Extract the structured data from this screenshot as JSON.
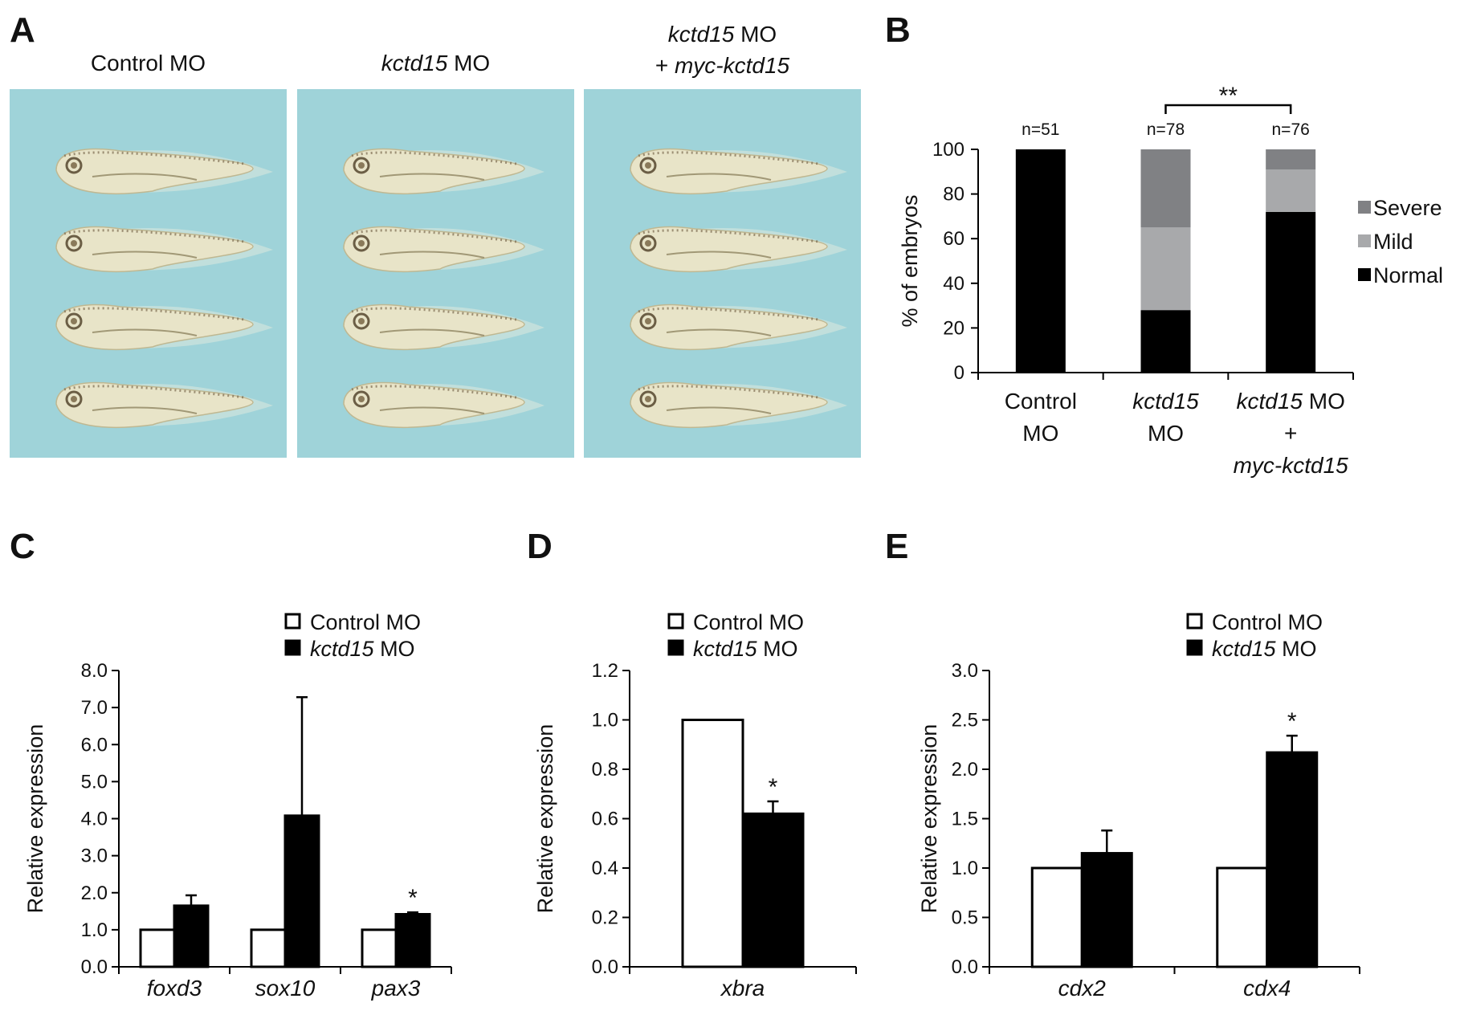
{
  "panel_a": {
    "letter": "A",
    "columns": [
      {
        "parts": [
          {
            "text": "Control MO",
            "italic": false
          }
        ]
      },
      {
        "parts": [
          {
            "text": "kctd15",
            "italic": true
          },
          {
            "text": " MO",
            "italic": false
          }
        ]
      },
      {
        "line1": [
          {
            "text": "kctd15",
            "italic": true
          },
          {
            "text": " MO",
            "italic": false
          }
        ],
        "line2": [
          {
            "text": "+ ",
            "italic": false
          },
          {
            "text": "myc-kctd15",
            "italic": true
          }
        ]
      }
    ],
    "embryos_per_column": 4,
    "colors": {
      "background": "#9fd3d9",
      "embryo": "#e8e4c8",
      "pigment": "#7a6a4e"
    }
  },
  "chart_data": [
    {
      "id": "B",
      "letter": "B",
      "type": "bar",
      "stacked": true,
      "ylabel": "% of embryos",
      "ylim": [
        0,
        100
      ],
      "yticks": [
        "0",
        "20",
        "40",
        "60",
        "80",
        "100"
      ],
      "categories": [
        {
          "lines": [
            [
              {
                "text": "Control",
                "italic": false
              }
            ],
            [
              {
                "text": "MO",
                "italic": false
              }
            ]
          ]
        },
        {
          "lines": [
            [
              {
                "text": "kctd15",
                "italic": true
              }
            ],
            [
              {
                "text": "MO",
                "italic": false
              }
            ]
          ]
        },
        {
          "lines": [
            [
              {
                "text": "kctd15",
                "italic": true
              },
              {
                "text": " MO",
                "italic": false
              }
            ],
            [
              {
                "text": "+",
                "italic": false
              }
            ],
            [
              {
                "text": "myc-kctd15",
                "italic": true
              }
            ]
          ]
        }
      ],
      "n_labels": [
        "n=51",
        "n=78",
        "n=76"
      ],
      "series": [
        {
          "name": "Normal",
          "color": "#000000",
          "values": [
            100,
            28,
            72
          ]
        },
        {
          "name": "Mild",
          "color": "#a8a9ab",
          "values": [
            0,
            37,
            19
          ]
        },
        {
          "name": "Severe",
          "color": "#808184",
          "values": [
            0,
            35,
            9
          ]
        }
      ],
      "legend": [
        "Severe",
        "Mild",
        "Normal"
      ],
      "significance": {
        "from": 1,
        "to": 2,
        "label": "**"
      }
    },
    {
      "id": "C",
      "letter": "C",
      "type": "bar",
      "ylabel": "Relative expression",
      "ylim": [
        0,
        8
      ],
      "yticks": [
        "0.0",
        "1.0",
        "2.0",
        "3.0",
        "4.0",
        "5.0",
        "6.0",
        "7.0",
        "8.0"
      ],
      "categories": [
        "foxd3",
        "sox10",
        "pax3"
      ],
      "series": [
        {
          "name": "Control MO",
          "fill": "#ffffff",
          "values": [
            1.0,
            1.0,
            1.0
          ],
          "errors": [
            0,
            0,
            0
          ]
        },
        {
          "name": "kctd15 MO",
          "fill": "#000000",
          "values": [
            1.65,
            4.08,
            1.42
          ],
          "errors": [
            0.28,
            3.2,
            0.05
          ]
        }
      ],
      "legend": [
        {
          "parts": [
            {
              "text": "Control MO",
              "italic": false
            }
          ]
        },
        {
          "parts": [
            {
              "text": "kctd15",
              "italic": true
            },
            {
              "text": " MO",
              "italic": false
            }
          ]
        }
      ],
      "stars": [
        {
          "category": 2,
          "label": "*"
        }
      ]
    },
    {
      "id": "D",
      "letter": "D",
      "type": "bar",
      "ylabel": "Relative expression",
      "ylim": [
        0,
        1.2
      ],
      "yticks": [
        "0.0",
        "0.2",
        "0.4",
        "0.6",
        "0.8",
        "1.0",
        "1.2"
      ],
      "categories": [
        "xbra"
      ],
      "series": [
        {
          "name": "Control MO",
          "fill": "#ffffff",
          "values": [
            1.0
          ],
          "errors": [
            0
          ]
        },
        {
          "name": "kctd15 MO",
          "fill": "#000000",
          "values": [
            0.62
          ],
          "errors": [
            0.05
          ]
        }
      ],
      "legend": [
        {
          "parts": [
            {
              "text": "Control MO",
              "italic": false
            }
          ]
        },
        {
          "parts": [
            {
              "text": "kctd15",
              "italic": true
            },
            {
              "text": " MO",
              "italic": false
            }
          ]
        }
      ],
      "stars": [
        {
          "category": 0,
          "label": "*"
        }
      ]
    },
    {
      "id": "E",
      "letter": "E",
      "type": "bar",
      "ylabel": "Relative expression",
      "ylim": [
        0,
        3
      ],
      "yticks": [
        "0.0",
        "0.5",
        "1.0",
        "1.5",
        "2.0",
        "2.5",
        "3.0"
      ],
      "categories": [
        "cdx2",
        "cdx4"
      ],
      "series": [
        {
          "name": "Control MO",
          "fill": "#ffffff",
          "values": [
            1.0,
            1.0
          ],
          "errors": [
            0,
            0
          ]
        },
        {
          "name": "kctd15 MO",
          "fill": "#000000",
          "values": [
            1.15,
            2.17
          ],
          "errors": [
            0.23,
            0.17
          ]
        }
      ],
      "legend": [
        {
          "parts": [
            {
              "text": "Control MO",
              "italic": false
            }
          ]
        },
        {
          "parts": [
            {
              "text": "kctd15",
              "italic": true
            },
            {
              "text": " MO",
              "italic": false
            }
          ]
        }
      ],
      "stars": [
        {
          "category": 1,
          "label": "*"
        }
      ]
    }
  ]
}
